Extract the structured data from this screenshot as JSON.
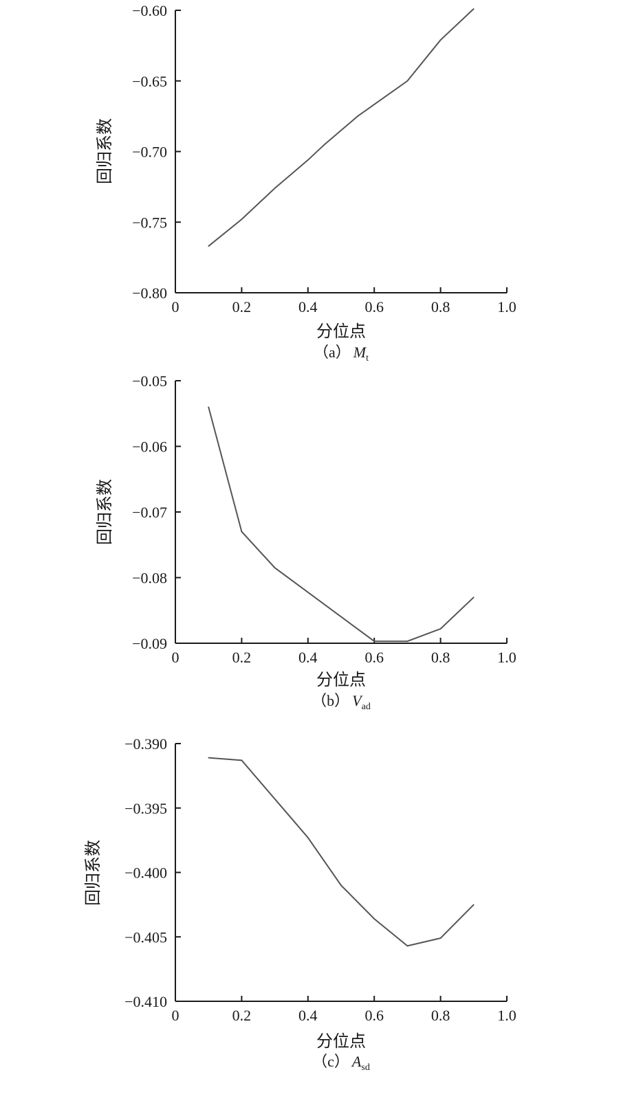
{
  "chart_data": [
    {
      "type": "line",
      "xlabel": "分位点",
      "ylabel": "回归系数",
      "caption": "（a）",
      "caption_var": "M",
      "caption_sub": "t",
      "xlim": [
        0,
        1.0
      ],
      "ylim": [
        -0.8,
        -0.6
      ],
      "xticks": [
        "0",
        "0.2",
        "0.4",
        "0.6",
        "0.8",
        "1.0"
      ],
      "yticks": [
        "−0.60",
        "−0.65",
        "−0.70",
        "−0.75",
        "−0.80"
      ],
      "series": [
        {
          "x": [
            0.1,
            0.2,
            0.3,
            0.4,
            0.45,
            0.55,
            0.7,
            0.8,
            0.9
          ],
          "values": [
            -0.767,
            -0.748,
            -0.726,
            -0.706,
            -0.695,
            -0.675,
            -0.65,
            -0.621,
            -0.599
          ]
        }
      ]
    },
    {
      "type": "line",
      "xlabel": "分位点",
      "ylabel": "回归系数",
      "caption": "（b）",
      "caption_var": "V",
      "caption_sub": "ad",
      "xlim": [
        0,
        1.0
      ],
      "ylim": [
        -0.09,
        -0.05
      ],
      "xticks": [
        "0",
        "0.2",
        "0.4",
        "0.6",
        "0.8",
        "1.0"
      ],
      "yticks": [
        "−0.05",
        "−0.06",
        "−0.07",
        "−0.08",
        "−0.09"
      ],
      "series": [
        {
          "x": [
            0.1,
            0.2,
            0.3,
            0.6,
            0.7,
            0.8,
            0.9
          ],
          "values": [
            -0.054,
            -0.073,
            -0.0785,
            -0.0897,
            -0.0897,
            -0.0878,
            -0.083
          ]
        }
      ]
    },
    {
      "type": "line",
      "xlabel": "分位点",
      "ylabel": "回归系数",
      "caption": "（c）",
      "caption_var": "A",
      "caption_sub": "sd",
      "xlim": [
        0,
        1.0
      ],
      "ylim": [
        -0.41,
        -0.39
      ],
      "xticks": [
        "0",
        "0.2",
        "0.4",
        "0.6",
        "0.8",
        "1.0"
      ],
      "yticks": [
        "−0.390",
        "−0.395",
        "−0.400",
        "−0.405",
        "−0.410"
      ],
      "series": [
        {
          "x": [
            0.1,
            0.2,
            0.35,
            0.4,
            0.5,
            0.6,
            0.7,
            0.8,
            0.9
          ],
          "values": [
            -0.3911,
            -0.3913,
            -0.3958,
            -0.3973,
            -0.401,
            -0.4036,
            -0.4057,
            -0.4051,
            -0.4025
          ]
        }
      ]
    }
  ]
}
